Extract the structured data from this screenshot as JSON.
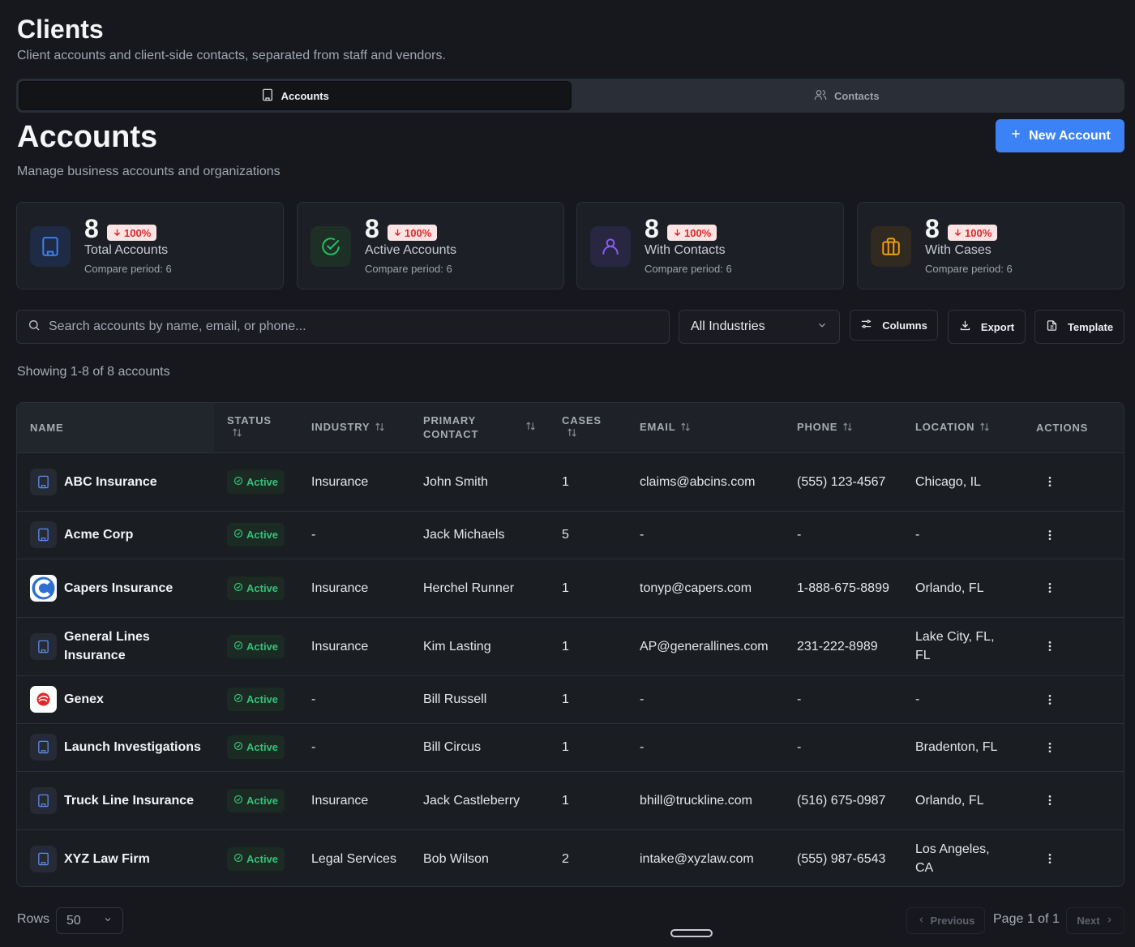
{
  "page": {
    "title": "Clients",
    "subtitle": "Client accounts and client-side contacts, separated from staff and vendors."
  },
  "tabs": [
    {
      "label": "Accounts",
      "icon": "building-icon",
      "active": true
    },
    {
      "label": "Contacts",
      "icon": "users-icon",
      "active": false
    }
  ],
  "section": {
    "title": "Accounts",
    "subtitle": "Manage business accounts and organizations",
    "new_button": "New Account"
  },
  "stats": [
    {
      "value": "8",
      "change": "100%",
      "label": "Total Accounts",
      "compare": "Compare period: 6",
      "icon": "building-icon",
      "color": "#3b82f6"
    },
    {
      "value": "8",
      "change": "100%",
      "label": "Active Accounts",
      "compare": "Compare period: 6",
      "icon": "check-circle-icon",
      "color": "#22c55e"
    },
    {
      "value": "8",
      "change": "100%",
      "label": "With Contacts",
      "compare": "Compare period: 6",
      "icon": "user-icon",
      "color": "#8b5cf6"
    },
    {
      "value": "8",
      "change": "100%",
      "label": "With Cases",
      "compare": "Compare period: 6",
      "icon": "briefcase-icon",
      "color": "#f59e0b"
    }
  ],
  "toolbar": {
    "search_placeholder": "Search accounts by name, email, or phone...",
    "industry_filter": "All Industries",
    "columns": "Columns",
    "export": "Export",
    "template": "Template"
  },
  "showing": "Showing 1-8 of 8 accounts",
  "table": {
    "headers": {
      "name": "NAME",
      "status": "STATUS",
      "industry": "INDUSTRY",
      "primary_contact_1": "PRIMARY",
      "primary_contact_2": "CONTACT",
      "cases": "CASES",
      "email": "EMAIL",
      "phone": "PHONE",
      "location": "LOCATION",
      "actions": "ACTIONS"
    },
    "rows": [
      {
        "name": "ABC Insurance",
        "logo": "building",
        "status": "Active",
        "industry": "Insurance",
        "contact": "John Smith",
        "cases": "1",
        "email": "claims@abcins.com",
        "phone": "(555) 123-4567",
        "location": "Chicago, IL"
      },
      {
        "name": "Acme Corp",
        "logo": "building",
        "status": "Active",
        "industry": "-",
        "contact": "Jack Michaels",
        "cases": "5",
        "email": "-",
        "phone": "-",
        "location": "-"
      },
      {
        "name": "Capers Insurance",
        "logo": "capers",
        "status": "Active",
        "industry": "Insurance",
        "contact": "Herchel Runner",
        "cases": "1",
        "email": "tonyp@capers.com",
        "phone": "1-888-675-8899",
        "location": "Orlando, FL"
      },
      {
        "name": "General Lines Insurance",
        "logo": "building",
        "status": "Active",
        "industry": "Insurance",
        "contact": "Kim Lasting",
        "cases": "1",
        "email": "AP@generallines.com",
        "phone": "231-222-8989",
        "location": "Lake City, FL, FL"
      },
      {
        "name": "Genex",
        "logo": "genex",
        "status": "Active",
        "industry": "-",
        "contact": "Bill Russell",
        "cases": "1",
        "email": "-",
        "phone": "-",
        "location": "-"
      },
      {
        "name": "Launch Investigations",
        "logo": "building",
        "status": "Active",
        "industry": "-",
        "contact": "Bill Circus",
        "cases": "1",
        "email": "-",
        "phone": "-",
        "location": "Bradenton, FL"
      },
      {
        "name": "Truck Line Insurance",
        "logo": "building",
        "status": "Active",
        "industry": "Insurance",
        "contact": "Jack Castleberry",
        "cases": "1",
        "email": "bhill@truckline.com",
        "phone": "(516) 675-0987",
        "location": "Orlando, FL"
      },
      {
        "name": "XYZ Law Firm",
        "logo": "building",
        "status": "Active",
        "industry": "Legal Services",
        "contact": "Bob Wilson",
        "cases": "2",
        "email": "intake@xyzlaw.com",
        "phone": "(555) 987-6543",
        "location": "Los Angeles, CA"
      }
    ]
  },
  "pagination": {
    "rows_label": "Rows",
    "rows_value": "50",
    "previous": "Previous",
    "page_info": "Page 1 of 1",
    "next": "Next"
  }
}
